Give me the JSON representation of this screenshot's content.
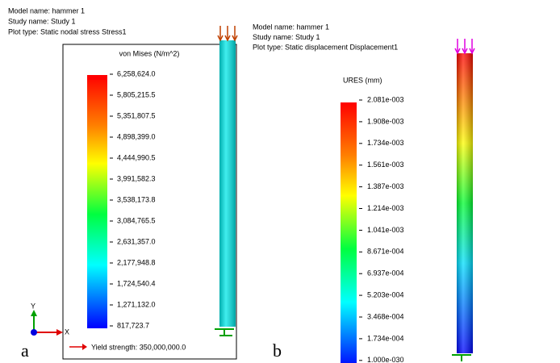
{
  "panels": [
    {
      "label": "a",
      "header": [
        "Model name: hammer 1",
        "Study name: Study 1",
        "Plot type: Static nodal stress Stress1"
      ],
      "legend_title": "von Mises (N/m^2)",
      "legend_labels": [
        "6,258,624.0",
        "5,805,215.5",
        "5,351,807.5",
        "4,898,399.0",
        "4,444,990.5",
        "3,991,582.3",
        "3,538,173.8",
        "3,084,765.5",
        "2,631,357.0",
        "2,177,948.8",
        "1,724,540.4",
        "1,271,132.0",
        "817,723.7"
      ],
      "yield_strength": "Yield strength: 350,000,000.0",
      "axis_labels": [
        "Y",
        "X"
      ]
    },
    {
      "label": "b",
      "header": [
        "Model name: hammer 1",
        "Study name: Study 1",
        "Plot type: Static displacement Displacement1"
      ],
      "legend_title": "URES (mm)",
      "legend_labels": [
        "2.081e-003",
        "1.908e-003",
        "1.734e-003",
        "1.561e-003",
        "1.387e-003",
        "1.214e-003",
        "1.041e-003",
        "8.671e-004",
        "6.937e-004",
        "5.203e-004",
        "3.468e-004",
        "1.734e-004",
        "1.000e-030"
      ]
    }
  ]
}
